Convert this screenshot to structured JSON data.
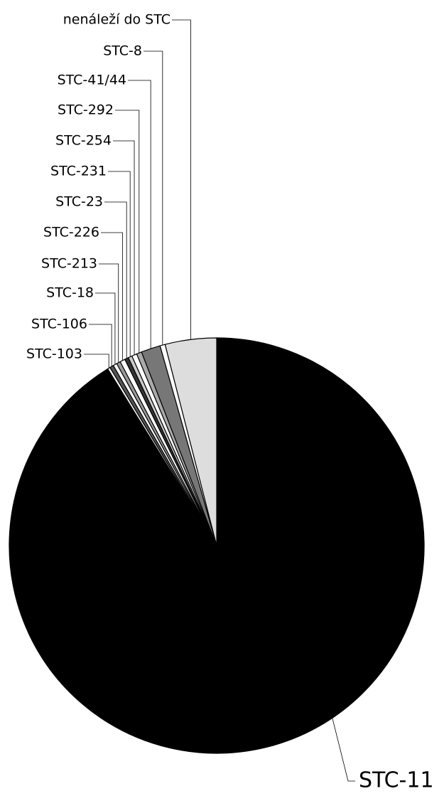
{
  "chart_data": {
    "type": "pie",
    "categories": [
      "STC-11",
      "STC-103",
      "STC-106",
      "STC-18",
      "STC-213",
      "STC-226",
      "STC-23",
      "STC-231",
      "STC-254",
      "STC-292",
      "STC-41/44",
      "STC-8",
      "nenáleží do STC"
    ],
    "values": [
      91.2,
      0.2,
      0.3,
      0.3,
      0.3,
      0.4,
      0.3,
      0.3,
      0.4,
      0.4,
      1.5,
      0.4,
      4.0
    ],
    "colors": [
      "#000000",
      "#ffffff",
      "#555555",
      "#ffffff",
      "#999999",
      "#ffffff",
      "#333333",
      "#cccccc",
      "#ffffff",
      "#aaaaaa",
      "#777777",
      "#ffffff",
      "#dddddd"
    ]
  }
}
